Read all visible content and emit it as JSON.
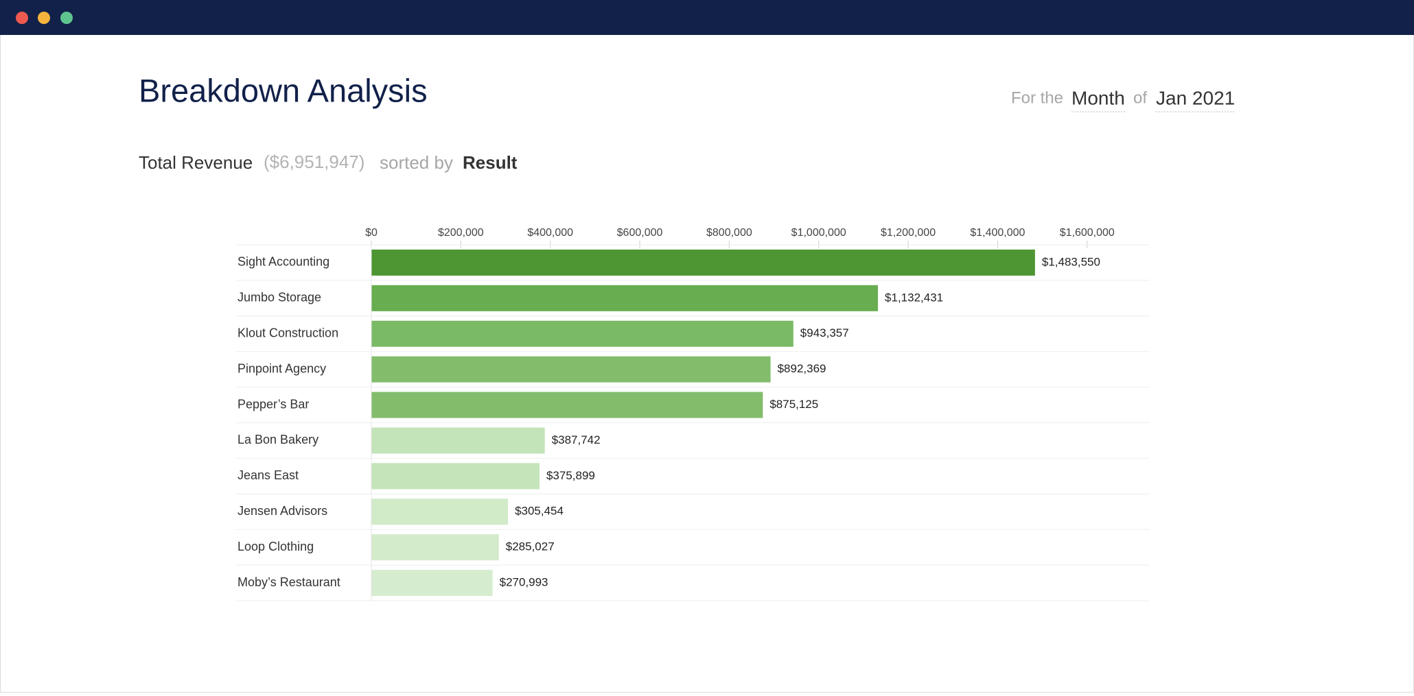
{
  "page": {
    "title": "Breakdown Analysis",
    "period": {
      "prefix": "For the",
      "unit": "Month",
      "joiner": "of",
      "date": "Jan 2021"
    },
    "summary": {
      "metric": "Total Revenue",
      "total": "($6,951,947)",
      "sort_prefix": "sorted by",
      "sort_key": "Result"
    }
  },
  "chart_data": {
    "type": "hbar",
    "categories": [
      "Sight Accounting",
      "Jumbo Storage",
      "Klout Construction",
      "Pinpoint Agency",
      "Pepper’s Bar",
      "La Bon Bakery",
      "Jeans East",
      "Jensen Advisors",
      "Loop Clothing",
      "Moby’s Restaurant"
    ],
    "values": [
      1483550,
      1132431,
      943357,
      892369,
      875125,
      387742,
      375899,
      305454,
      285027,
      270993
    ],
    "value_labels": [
      "$1,483,550",
      "$1,132,431",
      "$943,357",
      "$892,369",
      "$875,125",
      "$387,742",
      "$375,899",
      "$305,454",
      "$285,027",
      "$270,993"
    ],
    "colors": [
      "#4d9633",
      "#68ad50",
      "#7aba65",
      "#82bd6c",
      "#82bd6c",
      "#c3e3b8",
      "#c5e4ba",
      "#d1eac8",
      "#d3ebcb",
      "#d6ecce"
    ],
    "xlim": [
      0,
      1740000
    ],
    "xticks": [
      {
        "value": 0,
        "label": "$0"
      },
      {
        "value": 200000,
        "label": "$200,000"
      },
      {
        "value": 400000,
        "label": "$400,000"
      },
      {
        "value": 600000,
        "label": "$600,000"
      },
      {
        "value": 800000,
        "label": "$800,000"
      },
      {
        "value": 1000000,
        "label": "$1,000,000"
      },
      {
        "value": 1200000,
        "label": "$1,200,000"
      },
      {
        "value": 1400000,
        "label": "$1,400,000"
      },
      {
        "value": 1600000,
        "label": "$1,600,000"
      }
    ]
  }
}
